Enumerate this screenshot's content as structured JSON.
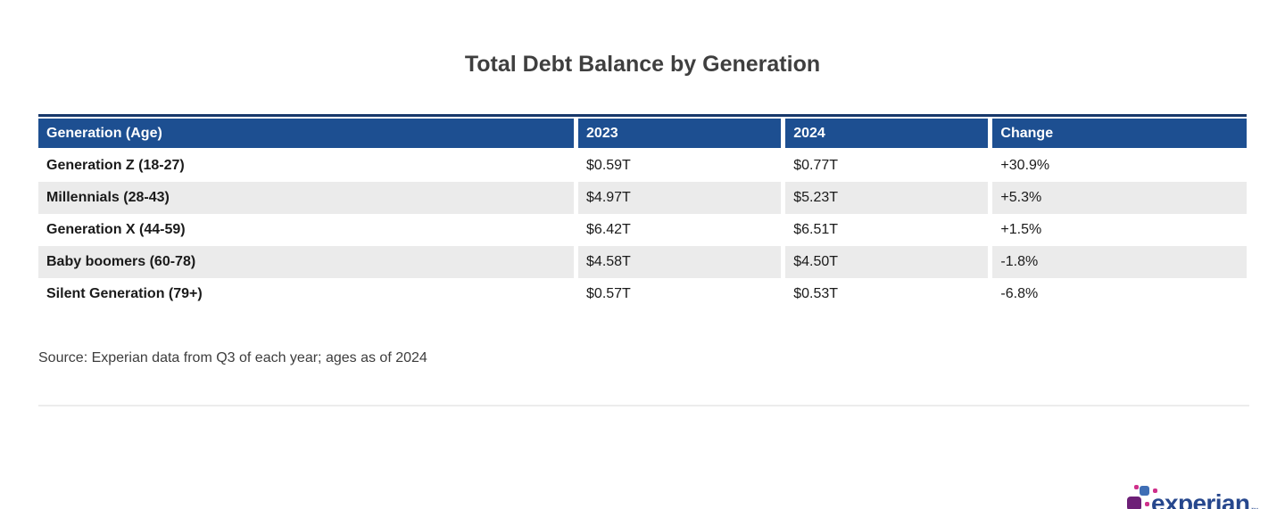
{
  "chart_data": {
    "type": "table",
    "title": "Total Debt Balance by Generation",
    "columns": [
      "Generation (Age)",
      "2023",
      "2024",
      "Change"
    ],
    "rows": [
      [
        "Generation Z (18-27)",
        "$0.59T",
        "$0.77T",
        "+30.9%"
      ],
      [
        "Millennials (28-43)",
        "$4.97T",
        "$5.23T",
        "+5.3%"
      ],
      [
        "Generation X (44-59)",
        "$6.42T",
        "$6.51T",
        "+1.5%"
      ],
      [
        "Baby boomers (60-78)",
        "$4.58T",
        "$4.50T",
        "-1.8%"
      ],
      [
        "Silent Generation (79+)",
        "$0.57T",
        "$0.53T",
        "-6.8%"
      ]
    ],
    "categories": [
      "Generation Z (18-27)",
      "Millennials (28-43)",
      "Generation X (44-59)",
      "Baby boomers (60-78)",
      "Silent Generation (79+)"
    ],
    "series": [
      {
        "name": "2023",
        "unit": "trillion USD",
        "values": [
          0.59,
          4.97,
          6.42,
          4.58,
          0.57
        ]
      },
      {
        "name": "2024",
        "unit": "trillion USD",
        "values": [
          0.77,
          5.23,
          6.51,
          4.5,
          0.53
        ]
      }
    ],
    "change_percent": [
      30.9,
      5.3,
      1.5,
      -1.8,
      -6.8
    ],
    "source": "Source: Experian data from Q3 of each year; ages as of 2024",
    "layout": {
      "header_bg": "#1d4f91",
      "header_topline": "#17386a",
      "alt_row_bg": "#ebebeb",
      "grid": "white cell gaps, alternating row shading"
    }
  },
  "logo": {
    "text": "experian",
    "trademark": "™",
    "colors": {
      "wordmark": "#26478d",
      "blue_square": "#3f6eb5",
      "purple_square": "#6d2077",
      "magenta_square": "#b3257e",
      "magenta_dots": "#cf2f8a"
    }
  },
  "colors": {
    "title_text": "#3f3f3f",
    "body_text": "#1a1a1a",
    "source_text": "#3d3d3d",
    "divider": "#ececec"
  }
}
